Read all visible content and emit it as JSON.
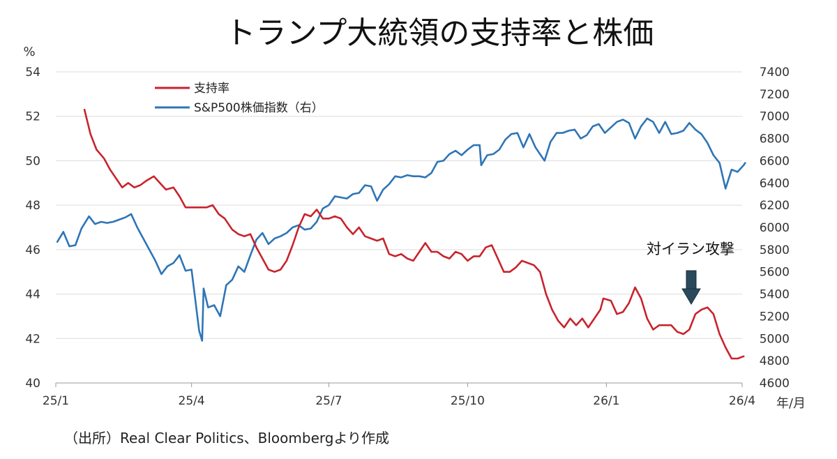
{
  "chart_data": {
    "type": "line",
    "title": "トランプ大統領の支持率と株価",
    "left_unit": "%",
    "x_unit": "年/月",
    "source": "（出所）Real Clear Politics、Bloombergより作成",
    "annotation": {
      "text": "対イラン攻撃",
      "x": "2026-02-28"
    },
    "legend": {
      "placement": "top-left",
      "entries": [
        "支持率",
        "S&P500株価指数（右）"
      ]
    },
    "x_ticks": [
      "25/1",
      "25/4",
      "25/7",
      "25/10",
      "26/1",
      "26/4"
    ],
    "x_tick_dates": [
      "2025-01-01",
      "2025-04-01",
      "2025-07-01",
      "2025-10-01",
      "2026-01-01",
      "2026-04-01"
    ],
    "y_left": {
      "min": 40,
      "max": 54,
      "ticks": [
        40,
        42,
        44,
        46,
        48,
        50,
        52,
        54
      ]
    },
    "y_right": {
      "min": 4600,
      "max": 7400,
      "ticks": [
        4600,
        4800,
        5000,
        5200,
        5400,
        5600,
        5800,
        6000,
        6200,
        6400,
        6600,
        6800,
        7000,
        7200,
        7400
      ]
    },
    "grid": true,
    "series": [
      {
        "name": "支持率",
        "axis": "left",
        "color": "#c8232c",
        "points": [
          [
            "2025-01-20",
            52.3
          ],
          [
            "2025-01-24",
            51.2
          ],
          [
            "2025-01-28",
            50.5
          ],
          [
            "2025-02-02",
            50.1
          ],
          [
            "2025-02-06",
            49.6
          ],
          [
            "2025-02-10",
            49.2
          ],
          [
            "2025-02-14",
            48.8
          ],
          [
            "2025-02-18",
            49.0
          ],
          [
            "2025-02-22",
            48.8
          ],
          [
            "2025-02-26",
            48.9
          ],
          [
            "2025-03-02",
            49.1
          ],
          [
            "2025-03-07",
            49.3
          ],
          [
            "2025-03-11",
            49.0
          ],
          [
            "2025-03-15",
            48.7
          ],
          [
            "2025-03-20",
            48.8
          ],
          [
            "2025-03-24",
            48.4
          ],
          [
            "2025-03-28",
            47.9
          ],
          [
            "2025-04-02",
            47.9
          ],
          [
            "2025-04-07",
            47.9
          ],
          [
            "2025-04-11",
            47.9
          ],
          [
            "2025-04-15",
            48.0
          ],
          [
            "2025-04-19",
            47.6
          ],
          [
            "2025-04-23",
            47.4
          ],
          [
            "2025-04-28",
            46.9
          ],
          [
            "2025-05-02",
            46.7
          ],
          [
            "2025-05-06",
            46.6
          ],
          [
            "2025-05-10",
            46.7
          ],
          [
            "2025-05-14",
            46.1
          ],
          [
            "2025-05-18",
            45.6
          ],
          [
            "2025-05-22",
            45.1
          ],
          [
            "2025-05-26",
            45.0
          ],
          [
            "2025-05-30",
            45.1
          ],
          [
            "2025-06-03",
            45.5
          ],
          [
            "2025-06-07",
            46.2
          ],
          [
            "2025-06-11",
            47.0
          ],
          [
            "2025-06-15",
            47.6
          ],
          [
            "2025-06-19",
            47.5
          ],
          [
            "2025-06-23",
            47.8
          ],
          [
            "2025-06-27",
            47.4
          ],
          [
            "2025-07-01",
            47.4
          ],
          [
            "2025-07-05",
            47.5
          ],
          [
            "2025-07-09",
            47.4
          ],
          [
            "2025-07-13",
            47.0
          ],
          [
            "2025-07-17",
            46.7
          ],
          [
            "2025-07-21",
            47.0
          ],
          [
            "2025-07-25",
            46.6
          ],
          [
            "2025-07-29",
            46.5
          ],
          [
            "2025-08-02",
            46.4
          ],
          [
            "2025-08-06",
            46.5
          ],
          [
            "2025-08-10",
            45.8
          ],
          [
            "2025-08-14",
            45.7
          ],
          [
            "2025-08-18",
            45.8
          ],
          [
            "2025-08-22",
            45.6
          ],
          [
            "2025-08-26",
            45.5
          ],
          [
            "2025-08-30",
            45.9
          ],
          [
            "2025-09-03",
            46.3
          ],
          [
            "2025-09-07",
            45.9
          ],
          [
            "2025-09-11",
            45.9
          ],
          [
            "2025-09-15",
            45.7
          ],
          [
            "2025-09-19",
            45.6
          ],
          [
            "2025-09-23",
            45.9
          ],
          [
            "2025-09-27",
            45.8
          ],
          [
            "2025-10-01",
            45.5
          ],
          [
            "2025-10-05",
            45.7
          ],
          [
            "2025-10-09",
            45.7
          ],
          [
            "2025-10-13",
            46.1
          ],
          [
            "2025-10-17",
            46.2
          ],
          [
            "2025-10-21",
            45.6
          ],
          [
            "2025-10-25",
            45.0
          ],
          [
            "2025-10-29",
            45.0
          ],
          [
            "2025-11-02",
            45.2
          ],
          [
            "2025-11-06",
            45.5
          ],
          [
            "2025-11-10",
            45.4
          ],
          [
            "2025-11-14",
            45.3
          ],
          [
            "2025-11-18",
            45.0
          ],
          [
            "2025-11-22",
            44.0
          ],
          [
            "2025-11-26",
            43.3
          ],
          [
            "2025-11-30",
            42.8
          ],
          [
            "2025-12-04",
            42.5
          ],
          [
            "2025-12-08",
            42.9
          ],
          [
            "2025-12-12",
            42.6
          ],
          [
            "2025-12-16",
            42.9
          ],
          [
            "2025-12-20",
            42.5
          ],
          [
            "2025-12-24",
            42.9
          ],
          [
            "2025-12-28",
            43.3
          ],
          [
            "2025-12-30",
            43.8
          ],
          [
            "2026-01-04",
            43.7
          ],
          [
            "2026-01-08",
            43.1
          ],
          [
            "2026-01-12",
            43.2
          ],
          [
            "2026-01-16",
            43.6
          ],
          [
            "2026-01-20",
            44.3
          ],
          [
            "2026-01-24",
            43.8
          ],
          [
            "2026-01-28",
            42.9
          ],
          [
            "2026-02-01",
            42.4
          ],
          [
            "2026-02-05",
            42.6
          ],
          [
            "2026-02-09",
            42.6
          ],
          [
            "2026-02-13",
            42.6
          ],
          [
            "2026-02-17",
            42.3
          ],
          [
            "2026-02-21",
            42.2
          ],
          [
            "2026-02-25",
            42.4
          ],
          [
            "2026-03-01",
            43.1
          ],
          [
            "2026-03-05",
            43.3
          ],
          [
            "2026-03-09",
            43.4
          ],
          [
            "2026-03-13",
            43.1
          ],
          [
            "2026-03-17",
            42.2
          ],
          [
            "2026-03-21",
            41.6
          ],
          [
            "2026-03-25",
            41.1
          ],
          [
            "2026-03-29",
            41.1
          ],
          [
            "2026-04-02",
            41.2
          ]
        ]
      },
      {
        "name": "S&P500株価指数（右）",
        "axis": "right",
        "color": "#2e75b6",
        "points": [
          [
            "2025-01-02",
            5870
          ],
          [
            "2025-01-06",
            5960
          ],
          [
            "2025-01-10",
            5830
          ],
          [
            "2025-01-14",
            5840
          ],
          [
            "2025-01-18",
            5990
          ],
          [
            "2025-01-23",
            6100
          ],
          [
            "2025-01-27",
            6030
          ],
          [
            "2025-01-31",
            6050
          ],
          [
            "2025-02-04",
            6040
          ],
          [
            "2025-02-08",
            6050
          ],
          [
            "2025-02-12",
            6070
          ],
          [
            "2025-02-16",
            6090
          ],
          [
            "2025-02-20",
            6120
          ],
          [
            "2025-02-24",
            6000
          ],
          [
            "2025-02-28",
            5900
          ],
          [
            "2025-03-04",
            5800
          ],
          [
            "2025-03-08",
            5700
          ],
          [
            "2025-03-12",
            5580
          ],
          [
            "2025-03-16",
            5650
          ],
          [
            "2025-03-20",
            5680
          ],
          [
            "2025-03-24",
            5750
          ],
          [
            "2025-03-28",
            5610
          ],
          [
            "2025-04-01",
            5620
          ],
          [
            "2025-04-03",
            5400
          ],
          [
            "2025-04-06",
            5070
          ],
          [
            "2025-04-08",
            4980
          ],
          [
            "2025-04-09",
            5450
          ],
          [
            "2025-04-12",
            5280
          ],
          [
            "2025-04-16",
            5300
          ],
          [
            "2025-04-20",
            5200
          ],
          [
            "2025-04-24",
            5480
          ],
          [
            "2025-04-28",
            5530
          ],
          [
            "2025-05-02",
            5650
          ],
          [
            "2025-05-06",
            5600
          ],
          [
            "2025-05-10",
            5750
          ],
          [
            "2025-05-14",
            5890
          ],
          [
            "2025-05-18",
            5950
          ],
          [
            "2025-05-22",
            5850
          ],
          [
            "2025-05-26",
            5900
          ],
          [
            "2025-05-30",
            5920
          ],
          [
            "2025-06-03",
            5950
          ],
          [
            "2025-06-07",
            6000
          ],
          [
            "2025-06-11",
            6020
          ],
          [
            "2025-06-15",
            5980
          ],
          [
            "2025-06-19",
            5990
          ],
          [
            "2025-06-23",
            6050
          ],
          [
            "2025-06-27",
            6170
          ],
          [
            "2025-07-01",
            6200
          ],
          [
            "2025-07-05",
            6280
          ],
          [
            "2025-07-09",
            6270
          ],
          [
            "2025-07-13",
            6260
          ],
          [
            "2025-07-17",
            6300
          ],
          [
            "2025-07-21",
            6310
          ],
          [
            "2025-07-25",
            6380
          ],
          [
            "2025-07-29",
            6370
          ],
          [
            "2025-08-02",
            6240
          ],
          [
            "2025-08-06",
            6340
          ],
          [
            "2025-08-10",
            6390
          ],
          [
            "2025-08-14",
            6460
          ],
          [
            "2025-08-18",
            6450
          ],
          [
            "2025-08-22",
            6470
          ],
          [
            "2025-08-26",
            6460
          ],
          [
            "2025-08-30",
            6460
          ],
          [
            "2025-09-03",
            6450
          ],
          [
            "2025-09-07",
            6490
          ],
          [
            "2025-09-11",
            6590
          ],
          [
            "2025-09-15",
            6600
          ],
          [
            "2025-09-19",
            6660
          ],
          [
            "2025-09-23",
            6690
          ],
          [
            "2025-09-27",
            6650
          ],
          [
            "2025-10-01",
            6700
          ],
          [
            "2025-10-05",
            6740
          ],
          [
            "2025-10-09",
            6740
          ],
          [
            "2025-10-10",
            6560
          ],
          [
            "2025-10-14",
            6650
          ],
          [
            "2025-10-18",
            6660
          ],
          [
            "2025-10-22",
            6700
          ],
          [
            "2025-10-26",
            6790
          ],
          [
            "2025-10-30",
            6840
          ],
          [
            "2025-11-03",
            6850
          ],
          [
            "2025-11-07",
            6720
          ],
          [
            "2025-11-11",
            6840
          ],
          [
            "2025-11-15",
            6720
          ],
          [
            "2025-11-19",
            6640
          ],
          [
            "2025-11-21",
            6600
          ],
          [
            "2025-11-25",
            6770
          ],
          [
            "2025-11-29",
            6850
          ],
          [
            "2025-12-03",
            6850
          ],
          [
            "2025-12-07",
            6870
          ],
          [
            "2025-12-11",
            6880
          ],
          [
            "2025-12-15",
            6800
          ],
          [
            "2025-12-19",
            6830
          ],
          [
            "2025-12-23",
            6910
          ],
          [
            "2025-12-27",
            6930
          ],
          [
            "2025-12-31",
            6850
          ],
          [
            "2026-01-04",
            6900
          ],
          [
            "2026-01-08",
            6950
          ],
          [
            "2026-01-12",
            6970
          ],
          [
            "2026-01-16",
            6940
          ],
          [
            "2026-01-20",
            6800
          ],
          [
            "2026-01-24",
            6910
          ],
          [
            "2026-01-28",
            6980
          ],
          [
            "2026-02-01",
            6950
          ],
          [
            "2026-02-05",
            6850
          ],
          [
            "2026-02-09",
            6950
          ],
          [
            "2026-02-13",
            6840
          ],
          [
            "2026-02-17",
            6850
          ],
          [
            "2026-02-21",
            6870
          ],
          [
            "2026-02-25",
            6940
          ],
          [
            "2026-03-01",
            6880
          ],
          [
            "2026-03-05",
            6840
          ],
          [
            "2026-03-09",
            6760
          ],
          [
            "2026-03-13",
            6650
          ],
          [
            "2026-03-17",
            6580
          ],
          [
            "2026-03-21",
            6350
          ],
          [
            "2026-03-25",
            6520
          ],
          [
            "2026-03-29",
            6500
          ],
          [
            "2026-04-02",
            6560
          ],
          [
            "2026-04-03",
            6580
          ]
        ]
      }
    ]
  }
}
